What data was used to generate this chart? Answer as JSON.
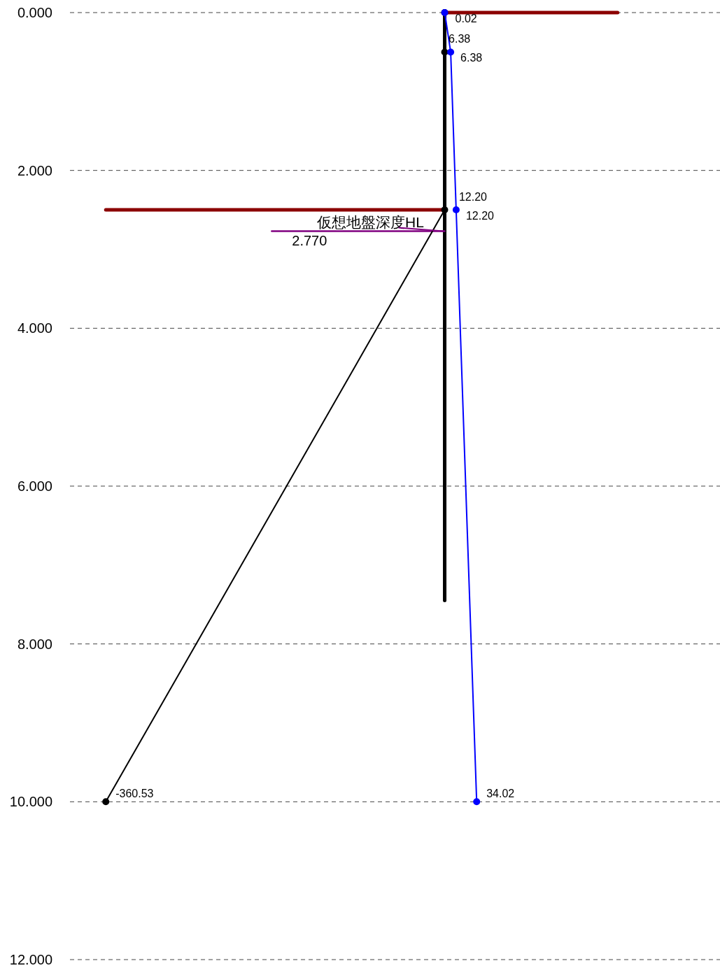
{
  "chart_data": {
    "type": "line",
    "orientation": "horizontal",
    "ylim": [
      12,
      0
    ],
    "yticks": [
      {
        "value": 0,
        "label": "0.000"
      },
      {
        "value": 2,
        "label": "2.000"
      },
      {
        "value": 4,
        "label": "4.000"
      },
      {
        "value": 6,
        "label": "6.000"
      },
      {
        "value": 8,
        "label": "8.000"
      },
      {
        "value": 10,
        "label": "10.000"
      },
      {
        "value": 12,
        "label": "12.000"
      }
    ],
    "grid": "y",
    "tick_labels": "y",
    "series": [
      {
        "color": "#8b0000",
        "x": [
          0,
          0
        ],
        "values": [
          0,
          184
        ]
      },
      {
        "color": "#8b0000",
        "x": [
          2.5,
          2.5
        ],
        "values": [
          -360.53,
          0
        ]
      },
      {
        "color": "#000000",
        "x": [
          0,
          7.45
        ],
        "values": [
          0,
          0
        ]
      },
      {
        "color": "#800080",
        "x": [
          2.77,
          2.77
        ],
        "values": [
          -184,
          0
        ]
      },
      {
        "color": "#000000",
        "marker": "circle",
        "x": [
          0,
          0.5,
          2.5,
          10
        ],
        "values": [
          0,
          0,
          0,
          -360.53
        ],
        "value_labels": [
          null,
          null,
          null,
          "-360.53"
        ]
      },
      {
        "color": "#0000ff",
        "marker": "circle",
        "x": [
          0,
          0.5,
          2.5,
          10
        ],
        "values": [
          0.02,
          6.38,
          12.2,
          34.02
        ],
        "value_labels": [
          "0.02",
          "6.38",
          "12.20",
          "34.02"
        ]
      }
    ],
    "annotations": [
      {
        "text": "6.38",
        "x": 6.38,
        "y": 0.5
      },
      {
        "text": "12.20",
        "x": 12.2,
        "y": 2.5
      },
      {
        "text": "仮想地盤深度HL",
        "x": 0,
        "y": 2.77
      },
      {
        "text": "2.770",
        "x": -184,
        "y": 2.77
      }
    ]
  }
}
